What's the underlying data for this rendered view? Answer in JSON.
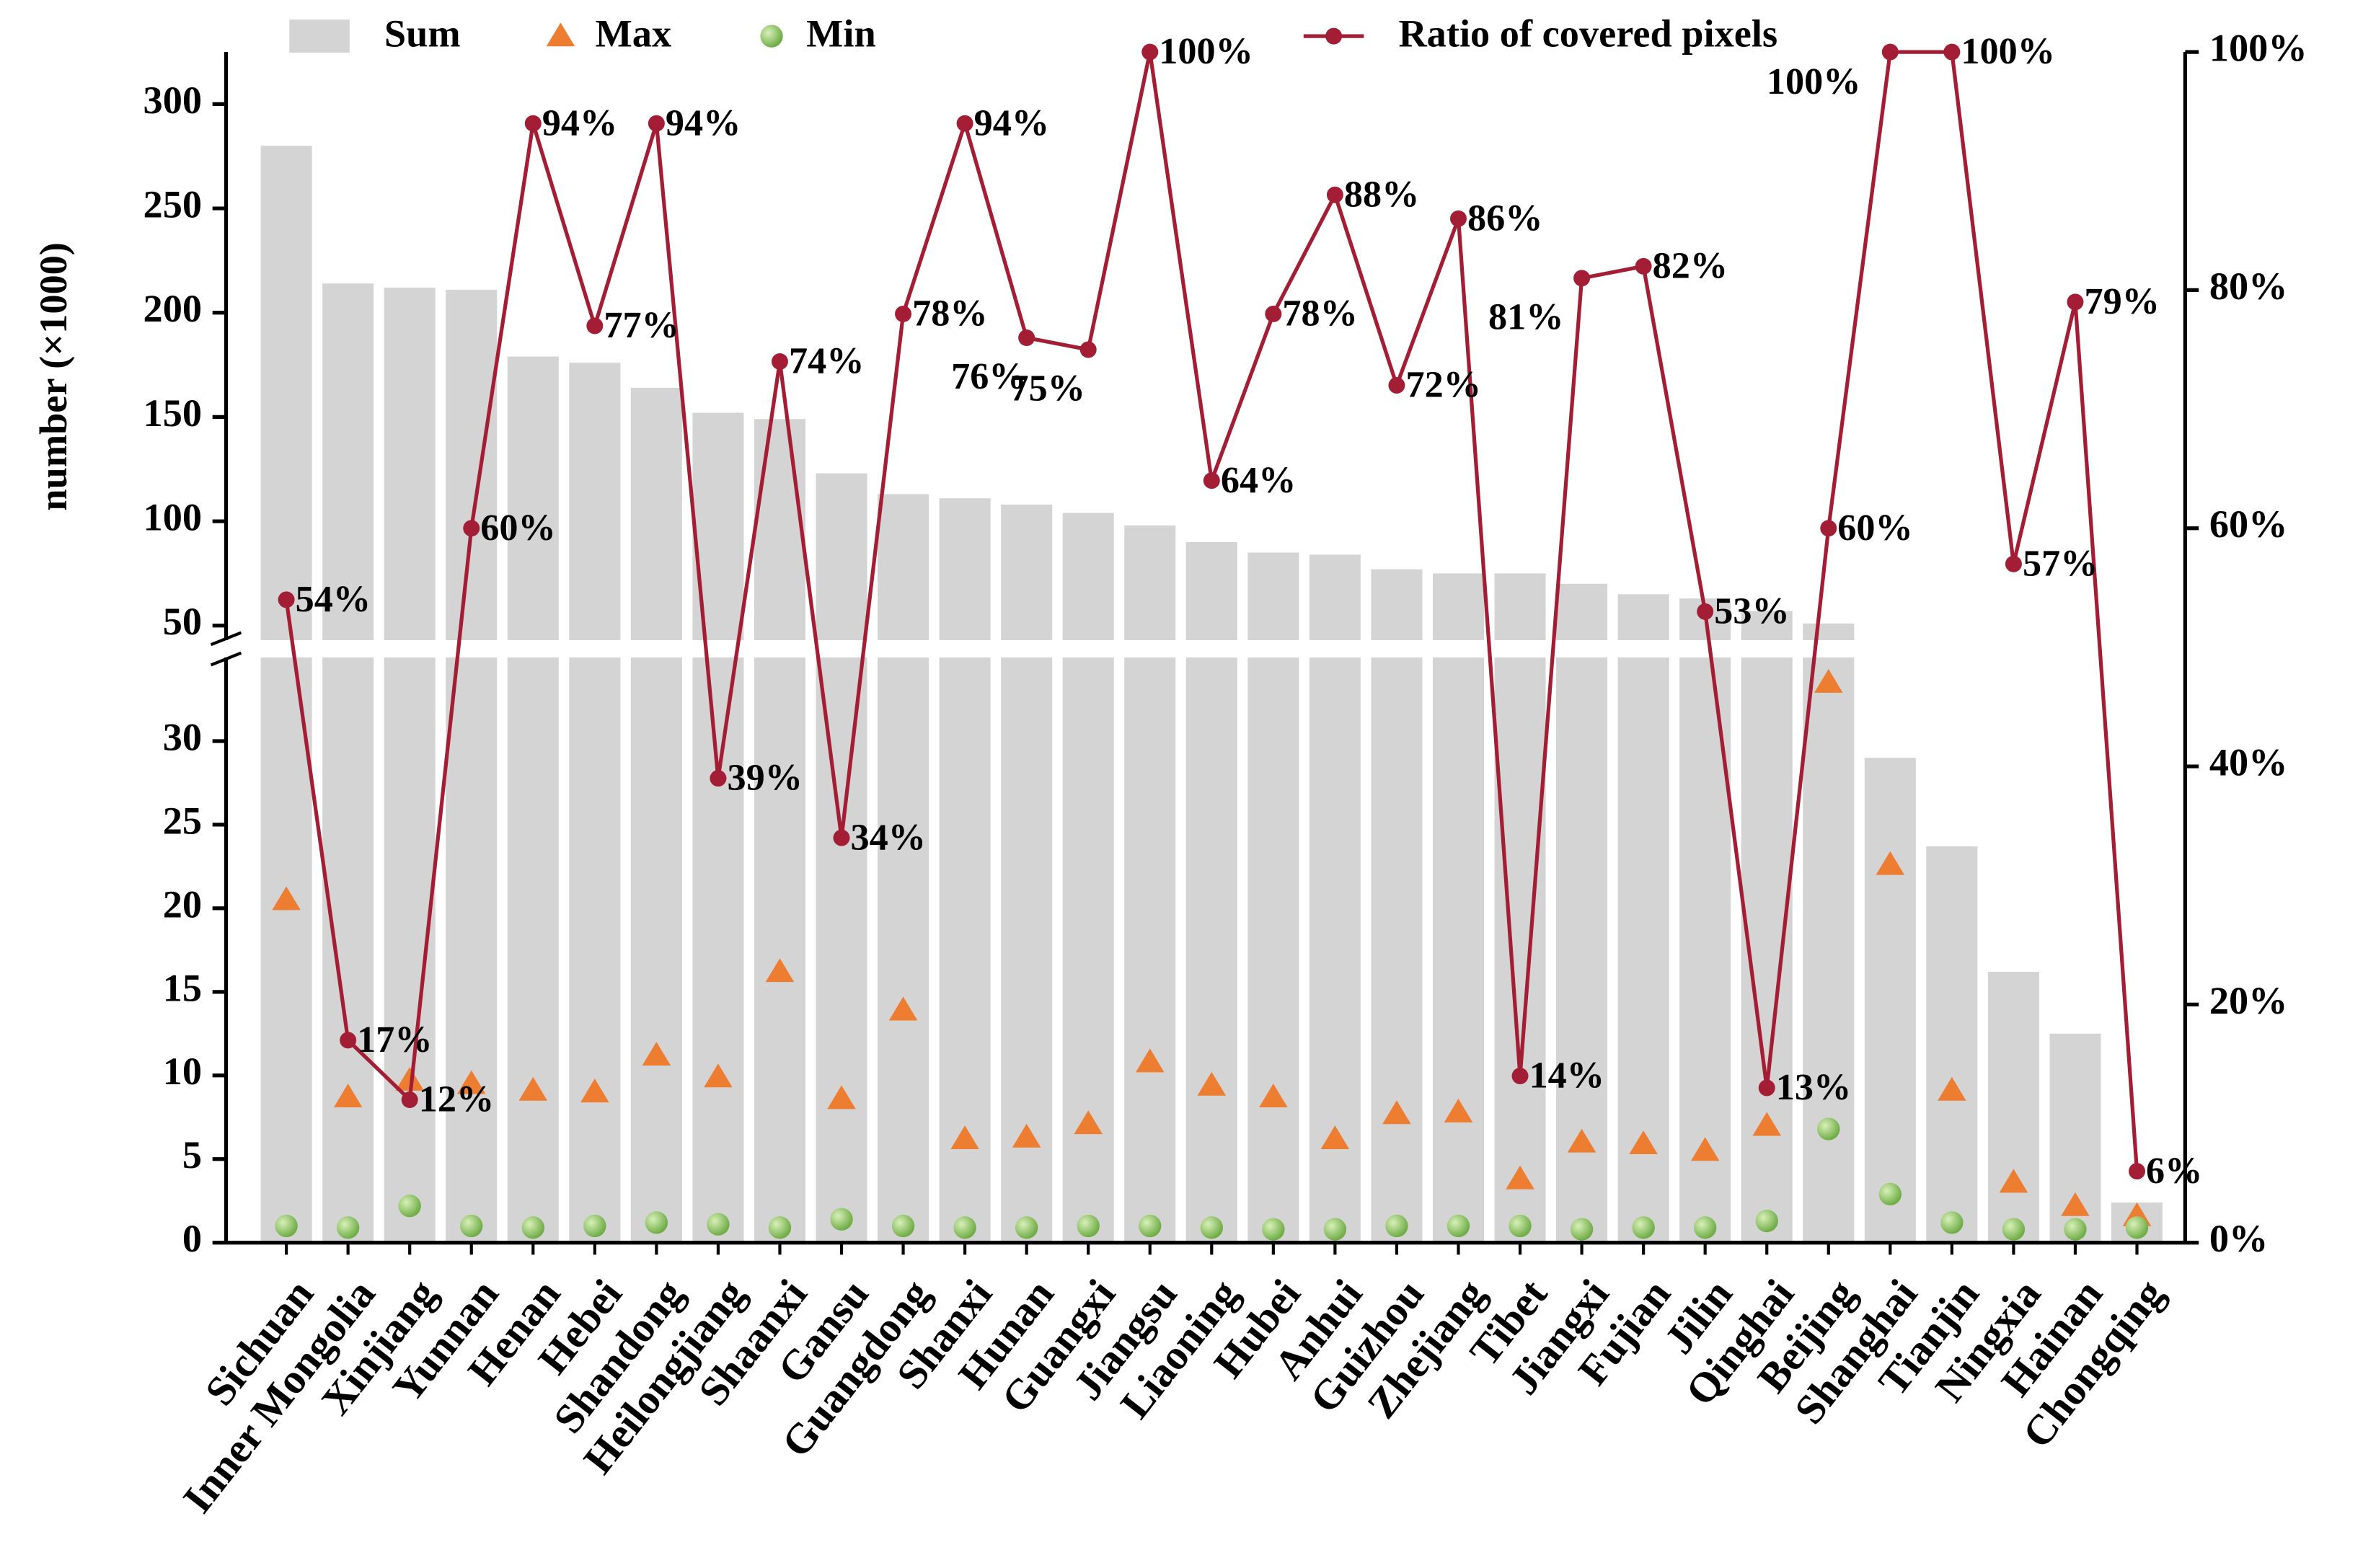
{
  "chart_data": {
    "type": "bar-line",
    "y_label": "number (×1000)",
    "categories": [
      "Sichuan",
      "Inner Mongolia",
      "Xinjiang",
      "Yunnan",
      "Henan",
      "Hebei",
      "Shandong",
      "Heilongjiang",
      "Shaanxi",
      "Gansu",
      "Guangdong",
      "Shanxi",
      "Hunan",
      "Guangxi",
      "Jiangsu",
      "Liaoning",
      "Hubei",
      "Anhui",
      "Guizhou",
      "Zhejiang",
      "Tibet",
      "Jiangxi",
      "Fujian",
      "Jilin",
      "Qinghai",
      "Beijing",
      "Shanghai",
      "Tianjin",
      "Ningxia",
      "Hainan",
      "Chongqing"
    ],
    "ylim": [
      0,
      325
    ],
    "ybreak": [
      35,
      43
    ],
    "yticks": [
      0,
      5,
      10,
      15,
      20,
      25,
      30,
      50,
      100,
      150,
      200,
      250,
      300
    ],
    "y2lim": [
      0,
      100
    ],
    "y2ticks": [
      {
        "value": 0,
        "label": "0%"
      },
      {
        "value": 20,
        "label": "20%"
      },
      {
        "value": 40,
        "label": "40%"
      },
      {
        "value": 60,
        "label": "60%"
      },
      {
        "value": 80,
        "label": "80%"
      },
      {
        "value": 100,
        "label": "100%"
      }
    ],
    "series": [
      {
        "name": "Sum",
        "type": "bar",
        "color": "#d4d4d4",
        "values": [
          280,
          214,
          212,
          211,
          179,
          176,
          164,
          152,
          149,
          123,
          113,
          111,
          108,
          104,
          98,
          90,
          85,
          84,
          77,
          75,
          75,
          70,
          65,
          63,
          57,
          51,
          29,
          23.7,
          16.2,
          12.5,
          2.4
        ]
      },
      {
        "name": "Max",
        "type": "triangle",
        "color": "#ed7d31",
        "values": [
          20.5,
          8.7,
          9.7,
          9.5,
          9.1,
          9.0,
          11.2,
          9.9,
          16.2,
          8.6,
          13.9,
          6.2,
          6.3,
          7.1,
          10.8,
          9.4,
          8.7,
          6.2,
          7.7,
          7.8,
          3.8,
          6.0,
          5.9,
          5.5,
          7.0,
          33.5,
          22.6,
          9.1,
          3.6,
          2.2,
          1.6
        ]
      },
      {
        "name": "Min",
        "type": "circle",
        "color": "#70ad47",
        "values": [
          1.0,
          0.9,
          2.2,
          1.0,
          0.9,
          1.0,
          1.2,
          1.1,
          0.9,
          1.4,
          1.0,
          0.9,
          0.9,
          1.0,
          1.0,
          0.9,
          0.8,
          0.8,
          1.0,
          1.0,
          1.0,
          0.8,
          0.9,
          0.9,
          1.3,
          6.8,
          2.9,
          1.2,
          0.8,
          0.8,
          0.9
        ]
      },
      {
        "name": "Ratio of covered pixels",
        "type": "line",
        "axis": "y2",
        "color": "#a31d35",
        "values": [
          54,
          17,
          12,
          60,
          94,
          77,
          94,
          39,
          74,
          34,
          78,
          94,
          76,
          75,
          100,
          64,
          78,
          88,
          72,
          86,
          14,
          81,
          82,
          53,
          13,
          60,
          100,
          100,
          57,
          79,
          6
        ],
        "value_labels": [
          "54%",
          "17%",
          "12%",
          "60%",
          "94%",
          "77%",
          "94%",
          "39%",
          "74%",
          "34%",
          "78%",
          "94%",
          "76%",
          "75%",
          "100%",
          "64%",
          "78%",
          "88%",
          "72%",
          "86%",
          "14%",
          "81%",
          "82%",
          "53%",
          "13%",
          "60%",
          "100%",
          "100%",
          "57%",
          "79%",
          "6%"
        ]
      }
    ]
  }
}
